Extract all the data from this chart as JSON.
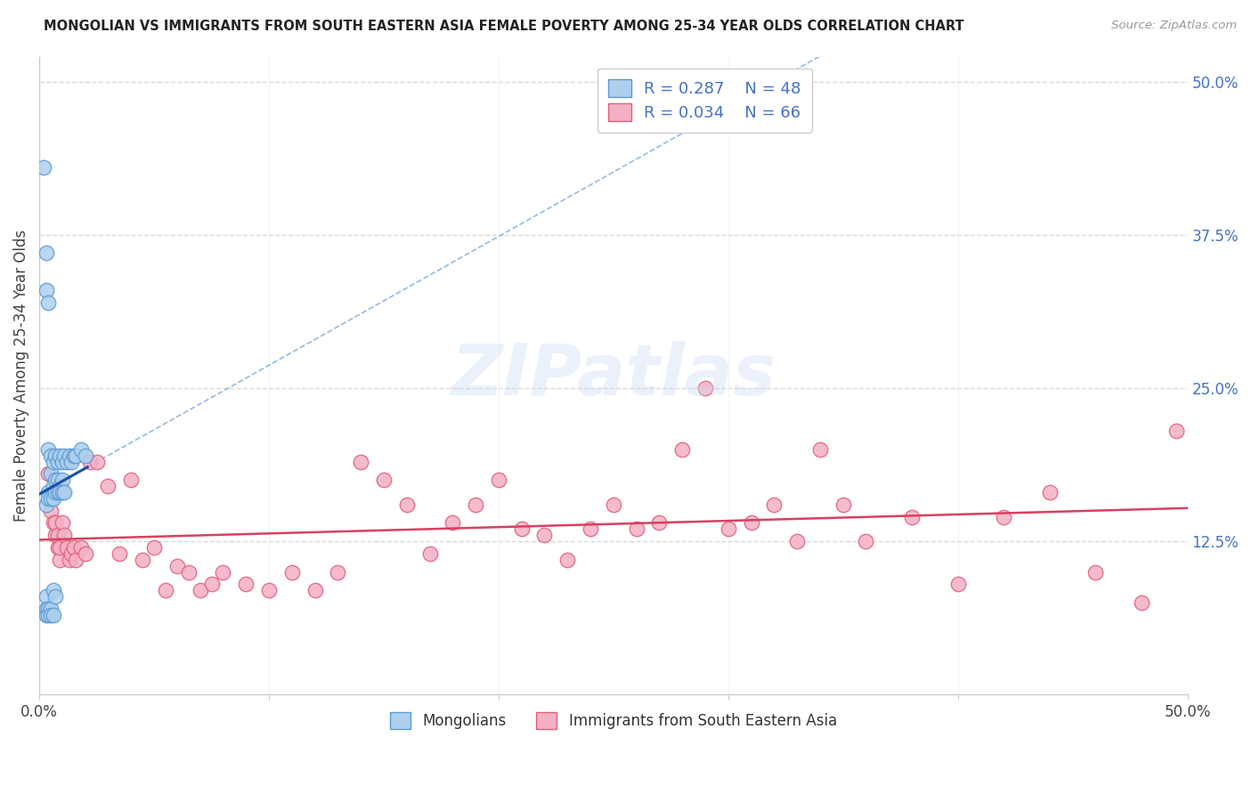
{
  "title": "MONGOLIAN VS IMMIGRANTS FROM SOUTH EASTERN ASIA FEMALE POVERTY AMONG 25-34 YEAR OLDS CORRELATION CHART",
  "source": "Source: ZipAtlas.com",
  "ylabel": "Female Poverty Among 25-34 Year Olds",
  "xlim": [
    0.0,
    0.5
  ],
  "ylim": [
    0.0,
    0.52
  ],
  "mongolian_color": "#aecfee",
  "mongolian_edge": "#5b9bd5",
  "immigrant_color": "#f4b0c4",
  "immigrant_edge": "#e0607a",
  "trend_mongolian_color": "#1a50a8",
  "trend_mongolian_dash_color": "#7aaad8",
  "trend_immigrant_color": "#d84060",
  "R_mongolian": 0.287,
  "N_mongolian": 48,
  "R_immigrant": 0.034,
  "N_immigrant": 66,
  "watermark_text": "ZIPatlas",
  "background_color": "#ffffff",
  "grid_color": "#d8d8d8",
  "right_axis_color": "#4472c4",
  "title_color": "#222222",
  "source_color": "#999999",
  "mongolians_x": [
    0.002,
    0.003,
    0.003,
    0.003,
    0.003,
    0.003,
    0.004,
    0.004,
    0.004,
    0.004,
    0.004,
    0.005,
    0.005,
    0.005,
    0.005,
    0.005,
    0.006,
    0.006,
    0.006,
    0.006,
    0.007,
    0.007,
    0.007,
    0.007,
    0.008,
    0.008,
    0.008,
    0.009,
    0.009,
    0.01,
    0.01,
    0.011,
    0.012,
    0.013,
    0.014,
    0.015,
    0.016,
    0.018,
    0.02,
    0.003,
    0.004,
    0.005,
    0.006,
    0.007,
    0.008,
    0.009,
    0.01,
    0.011
  ],
  "mongolians_y": [
    0.43,
    0.36,
    0.33,
    0.08,
    0.07,
    0.065,
    0.32,
    0.2,
    0.165,
    0.07,
    0.065,
    0.195,
    0.18,
    0.16,
    0.07,
    0.065,
    0.19,
    0.17,
    0.085,
    0.065,
    0.195,
    0.175,
    0.165,
    0.08,
    0.19,
    0.175,
    0.165,
    0.195,
    0.17,
    0.19,
    0.175,
    0.195,
    0.19,
    0.195,
    0.19,
    0.195,
    0.195,
    0.2,
    0.195,
    0.155,
    0.16,
    0.16,
    0.16,
    0.165,
    0.165,
    0.165,
    0.165,
    0.165
  ],
  "immigrants_x": [
    0.004,
    0.005,
    0.006,
    0.007,
    0.007,
    0.008,
    0.008,
    0.009,
    0.009,
    0.01,
    0.011,
    0.012,
    0.013,
    0.014,
    0.015,
    0.016,
    0.018,
    0.02,
    0.022,
    0.025,
    0.03,
    0.035,
    0.04,
    0.045,
    0.05,
    0.055,
    0.06,
    0.065,
    0.07,
    0.075,
    0.08,
    0.09,
    0.1,
    0.11,
    0.12,
    0.13,
    0.14,
    0.15,
    0.16,
    0.17,
    0.18,
    0.19,
    0.2,
    0.21,
    0.22,
    0.23,
    0.24,
    0.25,
    0.26,
    0.27,
    0.28,
    0.29,
    0.3,
    0.31,
    0.32,
    0.33,
    0.34,
    0.35,
    0.36,
    0.38,
    0.4,
    0.42,
    0.44,
    0.46,
    0.48,
    0.495
  ],
  "immigrants_y": [
    0.18,
    0.15,
    0.14,
    0.13,
    0.14,
    0.12,
    0.13,
    0.11,
    0.12,
    0.14,
    0.13,
    0.12,
    0.11,
    0.115,
    0.12,
    0.11,
    0.12,
    0.115,
    0.19,
    0.19,
    0.17,
    0.115,
    0.175,
    0.11,
    0.12,
    0.085,
    0.105,
    0.1,
    0.085,
    0.09,
    0.1,
    0.09,
    0.085,
    0.1,
    0.085,
    0.1,
    0.19,
    0.175,
    0.155,
    0.115,
    0.14,
    0.155,
    0.175,
    0.135,
    0.13,
    0.11,
    0.135,
    0.155,
    0.135,
    0.14,
    0.2,
    0.25,
    0.135,
    0.14,
    0.155,
    0.125,
    0.2,
    0.155,
    0.125,
    0.145,
    0.09,
    0.145,
    0.165,
    0.1,
    0.075,
    0.215
  ]
}
